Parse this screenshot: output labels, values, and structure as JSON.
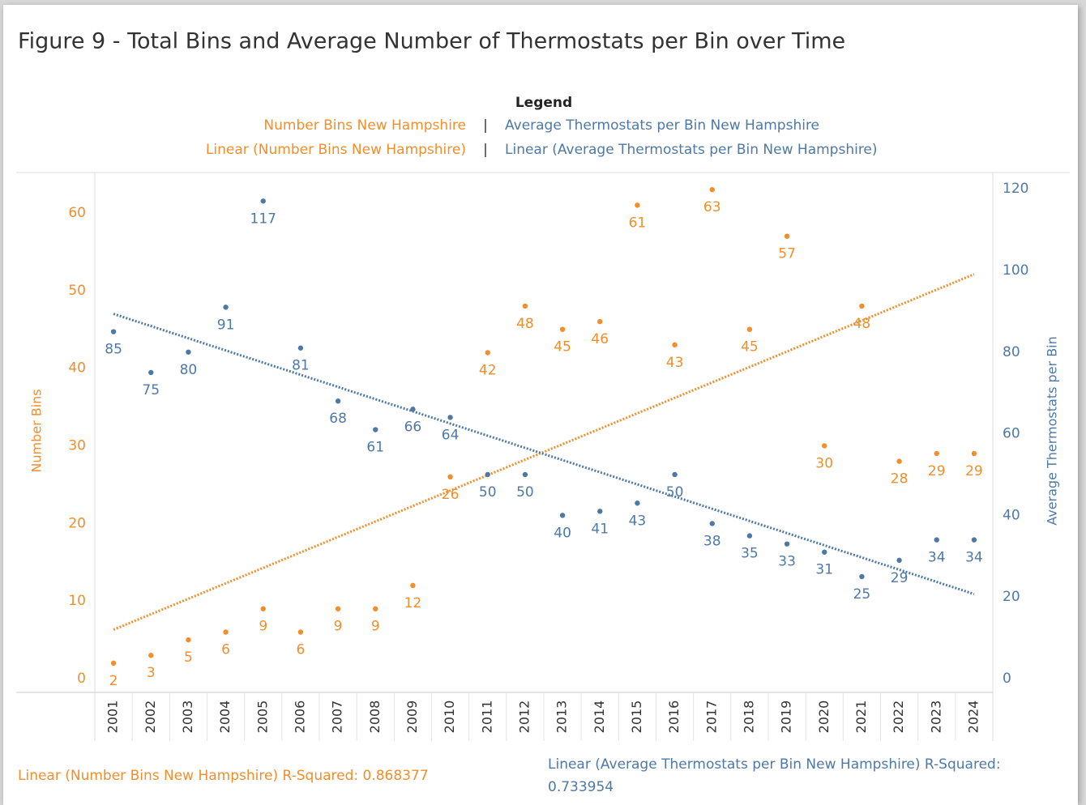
{
  "chart_data": {
    "type": "scatter",
    "title": "Figure 9 - Total Bins and Average Number of Thermostats per Bin over Time",
    "legend_title": "Legend",
    "categories": [
      "2001",
      "2002",
      "2003",
      "2004",
      "2005",
      "2006",
      "2007",
      "2008",
      "2009",
      "2010",
      "2011",
      "2012",
      "2013",
      "2014",
      "2015",
      "2016",
      "2017",
      "2018",
      "2019",
      "2020",
      "2021",
      "2022",
      "2023",
      "2024"
    ],
    "series": [
      {
        "name": "Number Bins New Hampshire",
        "trend_name": "Linear (Number Bins New Hampshire)",
        "color": "#f28e2b",
        "values": [
          2,
          3,
          5,
          6,
          9,
          6,
          9,
          9,
          12,
          26,
          42,
          48,
          45,
          46,
          61,
          43,
          63,
          45,
          57,
          30,
          48,
          28,
          29,
          29
        ]
      },
      {
        "name": "Average Thermostats per Bin New Hampshire",
        "trend_name": "Linear (Average Thermostats per Bin New Hampshire)",
        "color": "#4e79a7",
        "axis": "y2",
        "values": [
          85,
          75,
          80,
          91,
          117,
          81,
          68,
          61,
          66,
          64,
          50,
          50,
          40,
          41,
          43,
          50,
          38,
          35,
          33,
          31,
          25,
          29,
          34,
          34
        ]
      }
    ],
    "ylabel": "Number Bins",
    "y2label": "Average Thermostats per Bin",
    "ylim": [
      0,
      65
    ],
    "yticks": [
      0,
      10,
      20,
      30,
      40,
      50,
      60
    ],
    "y2lim": [
      0,
      123.6
    ],
    "y2ticks": [
      0,
      20,
      40,
      60,
      80,
      100,
      120
    ],
    "annotations": [
      "Linear (Number Bins New Hampshire) R-Squared: 0.868377",
      "Linear (Average Thermostats per Bin New Hampshire) R-Squared: 0.733954"
    ]
  }
}
